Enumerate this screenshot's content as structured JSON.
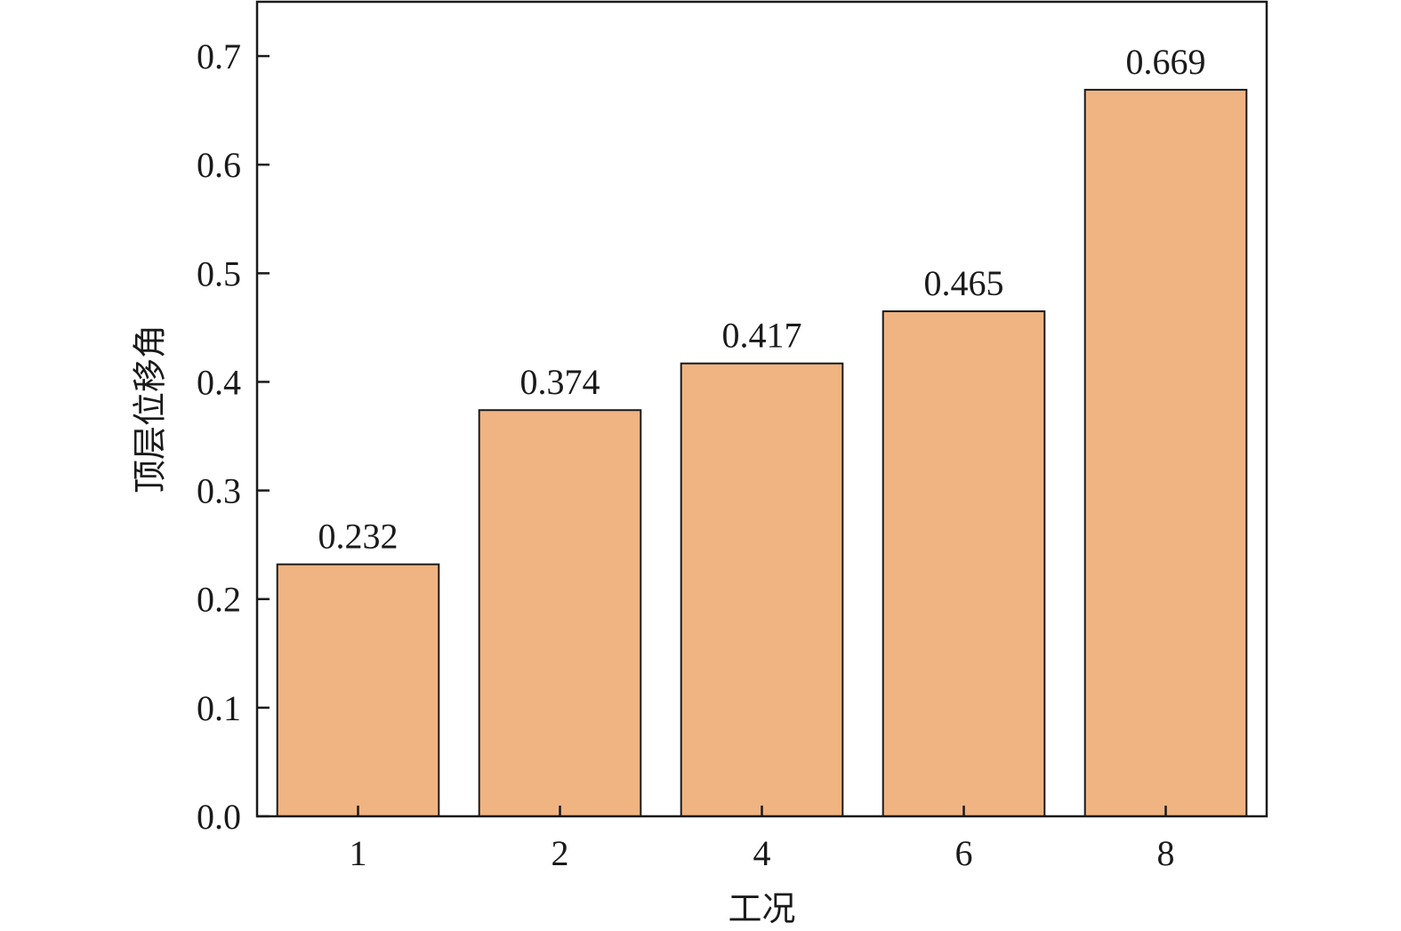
{
  "chart_data": {
    "type": "bar",
    "categories": [
      "1",
      "2",
      "4",
      "6",
      "8"
    ],
    "values": [
      0.232,
      0.374,
      0.417,
      0.465,
      0.669
    ],
    "data_labels": [
      "0.232",
      "0.374",
      "0.417",
      "0.465",
      "0.669"
    ],
    "title": "",
    "xlabel": "工况",
    "ylabel": "顶层位移角",
    "ylim": [
      0,
      0.75
    ],
    "yticks": [
      0.0,
      0.1,
      0.2,
      0.3,
      0.4,
      0.5,
      0.6,
      0.7
    ],
    "ytick_labels": [
      "0.0",
      "0.1",
      "0.2",
      "0.3",
      "0.4",
      "0.5",
      "0.6",
      "0.7"
    ],
    "grid": false,
    "legend": "none",
    "colors": {
      "bar_fill": "#F0B482",
      "bar_stroke": "#1a1a1a",
      "axis": "#1a1a1a",
      "text": "#1a1a1a"
    }
  }
}
